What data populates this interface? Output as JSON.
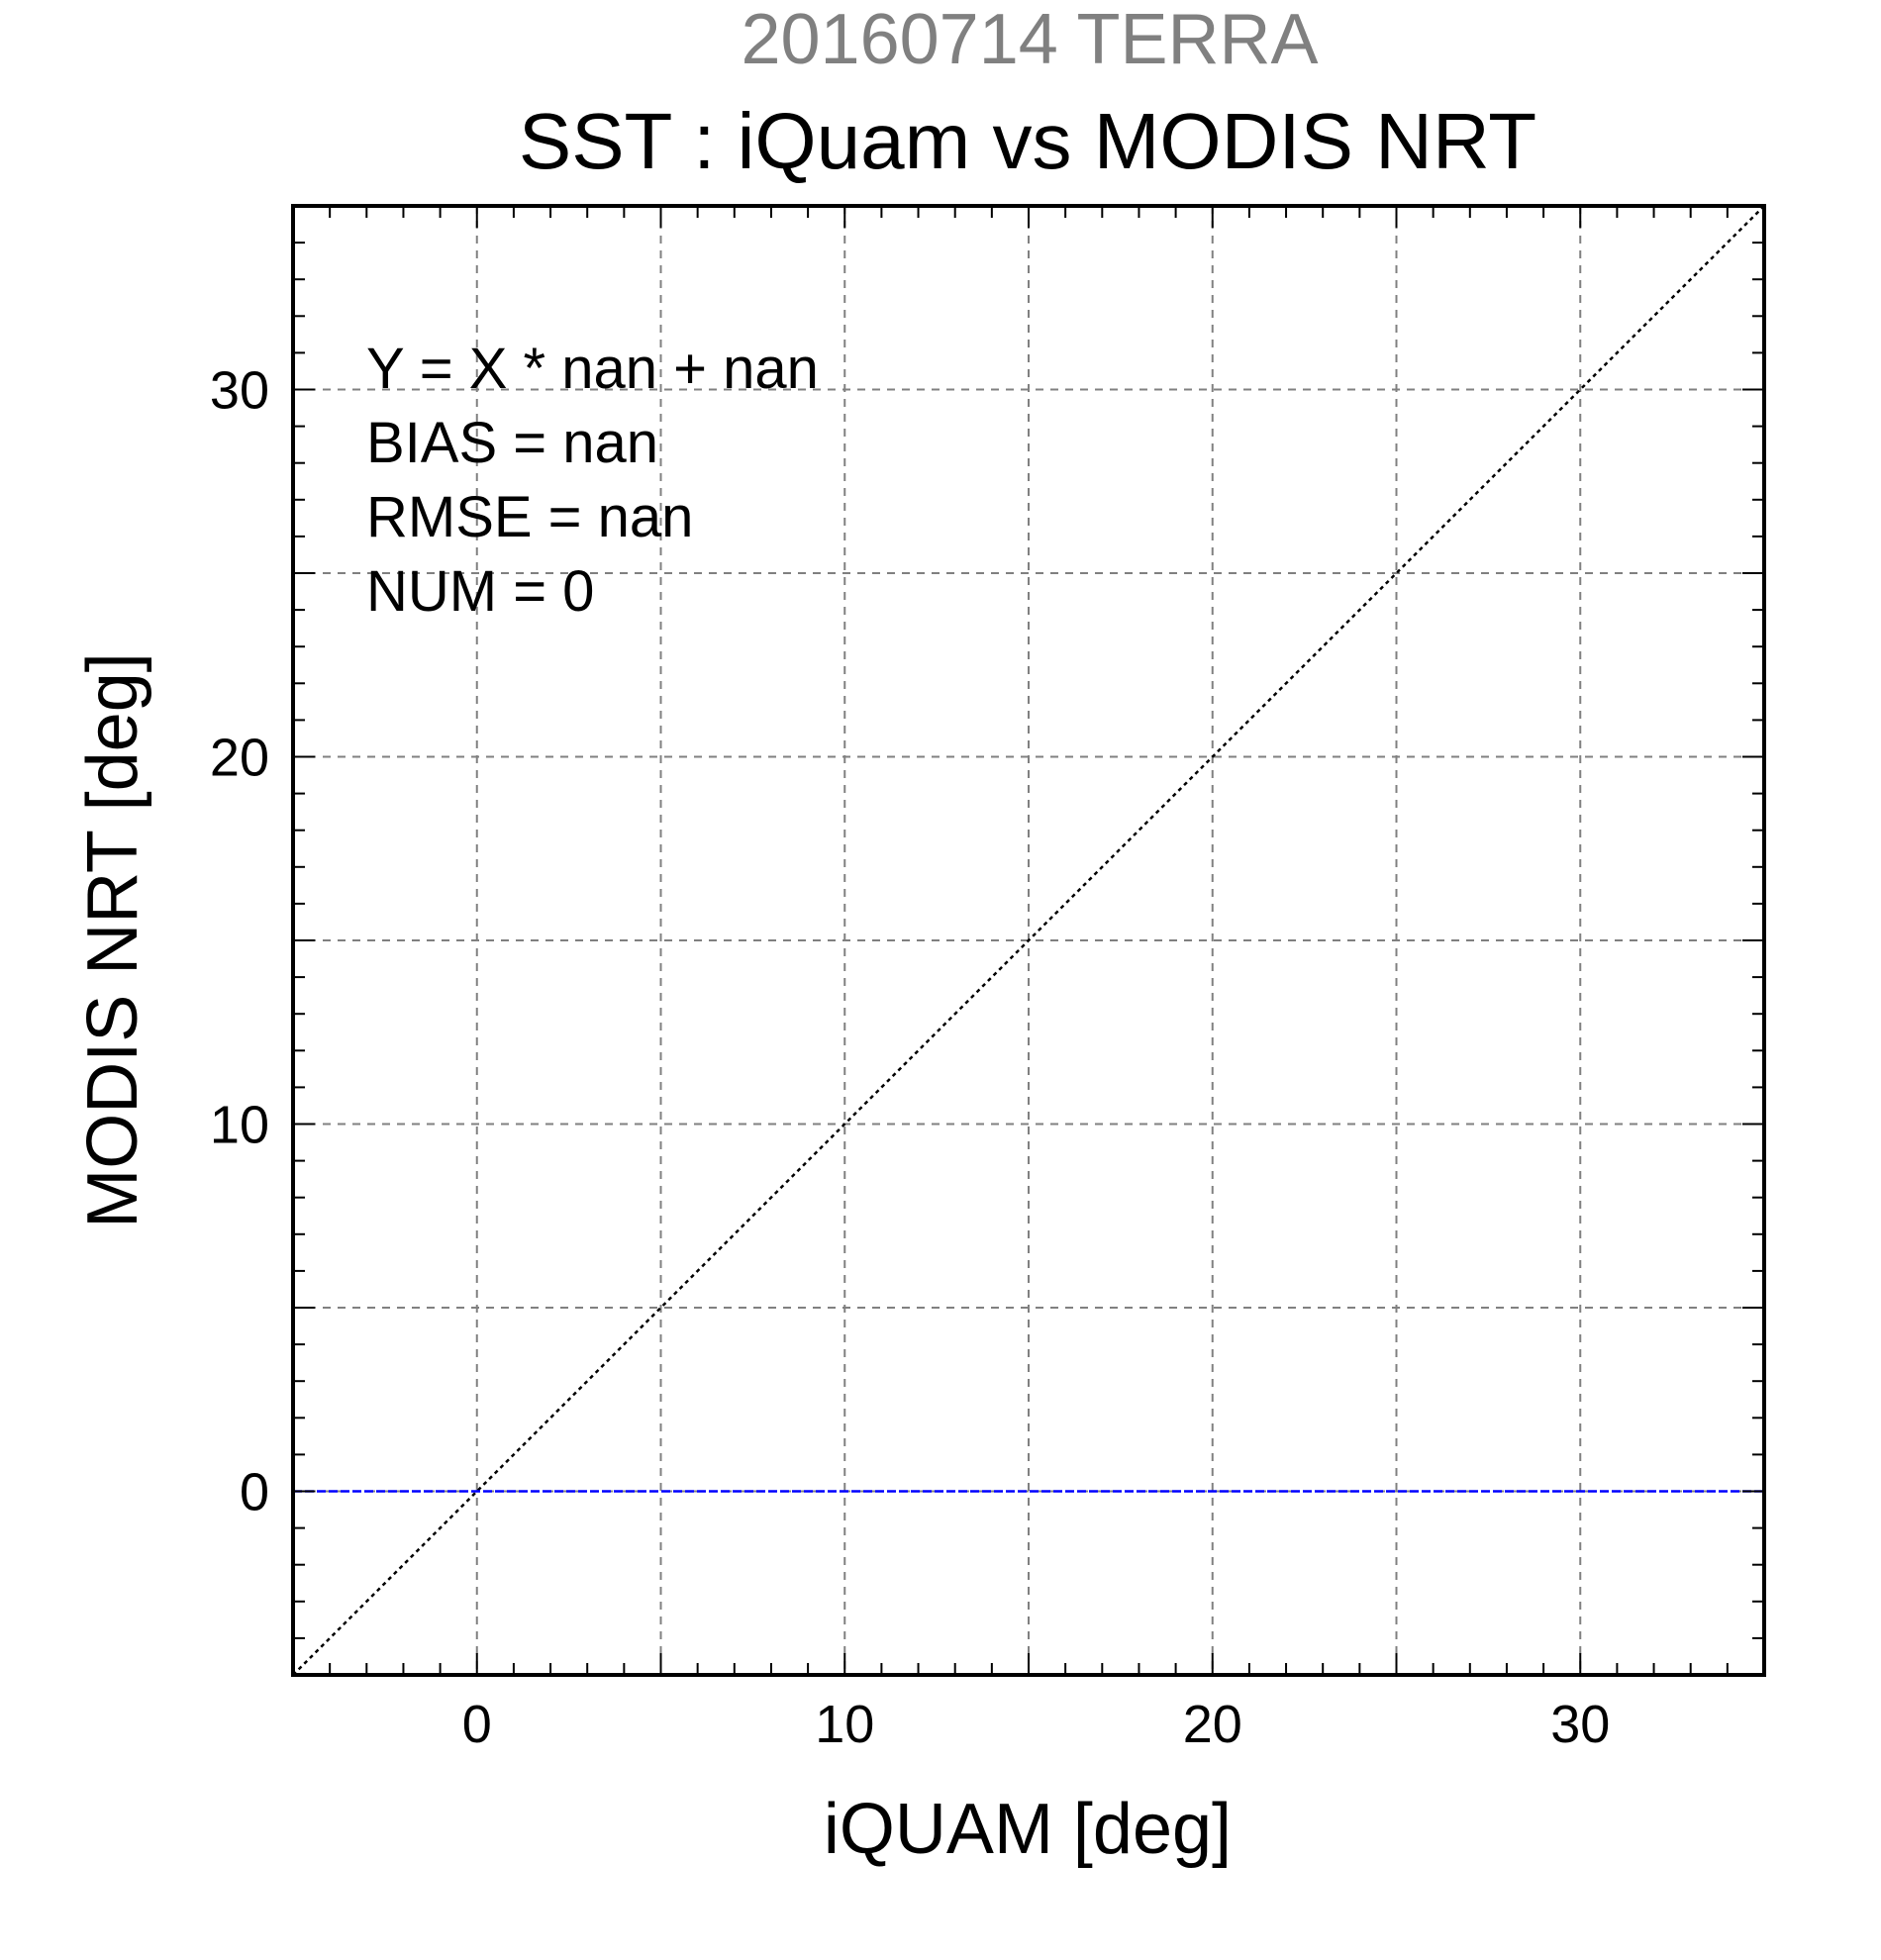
{
  "chart_data": {
    "type": "scatter",
    "subtitle": "20160714 TERRA",
    "title": "SST : iQuam vs MODIS NRT",
    "xlabel": "iQUAM [deg]",
    "ylabel": "MODIS NRT [deg]",
    "xlim": [
      -5,
      35
    ],
    "ylim": [
      -5,
      35
    ],
    "x_ticks": [
      0,
      10,
      20,
      30
    ],
    "y_ticks": [
      0,
      10,
      20,
      30
    ],
    "x_tick_labels": [
      "0",
      "10",
      "20",
      "30"
    ],
    "y_tick_labels": [
      "0",
      "10",
      "20",
      "30"
    ],
    "grid": true,
    "grid_step": 5,
    "minor_tick_step": 1,
    "annotations": [
      "Y = X * nan + nan",
      "BIAS = nan",
      "RMSE = nan",
      "NUM = 0"
    ],
    "series": [],
    "reference_lines": [
      {
        "kind": "identity",
        "color": "#000000",
        "style": "dotted"
      },
      {
        "kind": "horizontal",
        "y": 0,
        "color": "#0000ff",
        "style": "dashed"
      }
    ]
  }
}
